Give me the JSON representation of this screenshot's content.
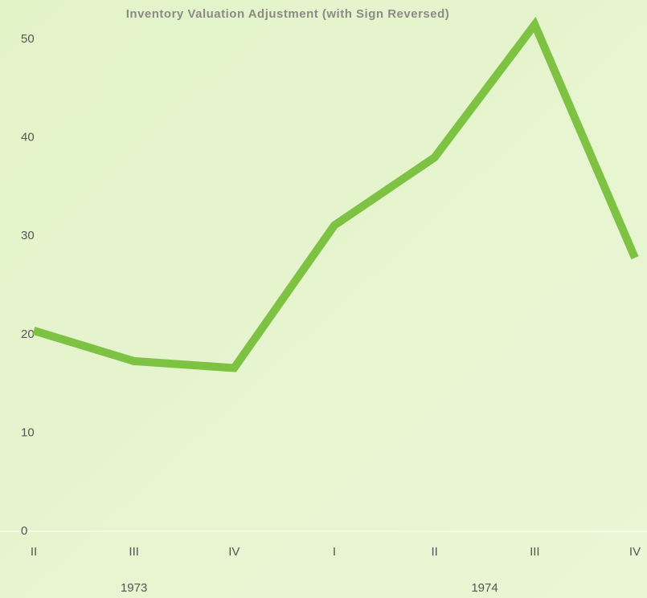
{
  "chart_data": {
    "type": "line",
    "title": "Inventory Valuation Adjustment (with Sign Reversed)",
    "categories": [
      "II",
      "III",
      "IV",
      "I",
      "II",
      "III",
      "IV"
    ],
    "groups": [
      "1973",
      "1974"
    ],
    "series": [
      {
        "name": "Inventory Valuation Adjustment",
        "color": "#7dc242",
        "values": [
          20.4,
          17.3,
          16.6,
          31.1,
          38.0,
          51.5,
          27.8
        ]
      }
    ],
    "ylim": [
      0,
      54
    ],
    "yticks": [
      0,
      10,
      20,
      30,
      40,
      50
    ],
    "grid": false
  }
}
